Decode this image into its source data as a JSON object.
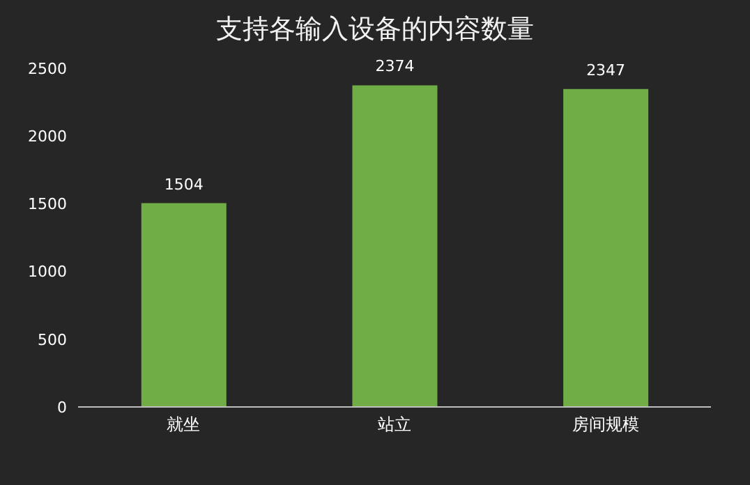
{
  "chart_data": {
    "type": "bar",
    "title": "支持各输入设备的内容数量",
    "categories": [
      "就坐",
      "站立",
      "房间规模"
    ],
    "values": [
      1504,
      2374,
      2347
    ],
    "color": "#70ad47",
    "ylim": [
      0,
      2500
    ],
    "yticks": [
      0,
      500,
      1000,
      1500,
      2000,
      2500
    ],
    "grid": false,
    "data_labels": true
  }
}
